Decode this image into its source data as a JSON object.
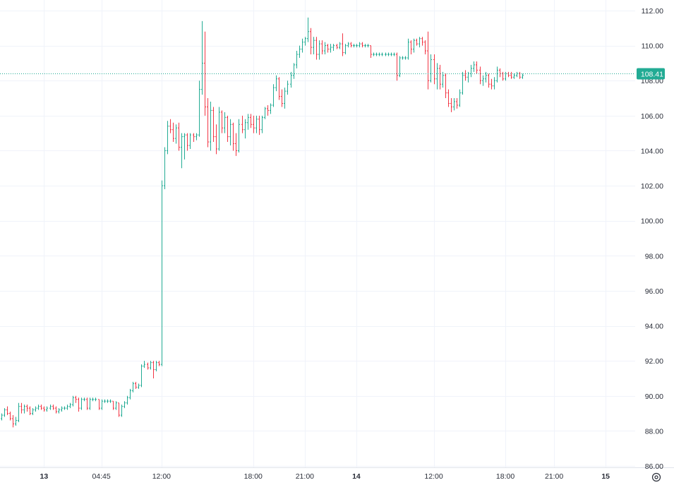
{
  "chart_data": {
    "type": "ohlc",
    "colors": {
      "up": "#22ab94",
      "down": "#f23645",
      "grid": "#f0f3fa",
      "axis_text": "#2a2e39",
      "price_line": "#22ab94",
      "background": "#ffffff"
    },
    "y_axis": {
      "position": "right",
      "ylim": [
        86,
        113
      ],
      "ticks": [
        "112.00",
        "110.00",
        "108.00",
        "106.00",
        "104.00",
        "102.00",
        "100.00",
        "98.00",
        "96.00",
        "94.00",
        "92.00",
        "90.00",
        "88.00",
        "86.00"
      ]
    },
    "x_axis": {
      "ticks": [
        {
          "label": "13",
          "bar": 15,
          "major": true
        },
        {
          "label": "04:45",
          "bar": 35,
          "major": false
        },
        {
          "label": "12:00",
          "bar": 56,
          "major": false
        },
        {
          "label": "18:00",
          "bar": 88,
          "major": false
        },
        {
          "label": "21:00",
          "bar": 106,
          "major": false
        },
        {
          "label": "14",
          "bar": 124,
          "major": true
        },
        {
          "label": "12:00",
          "bar": 151,
          "major": false
        },
        {
          "label": "18:00",
          "bar": 176,
          "major": false
        },
        {
          "label": "21:00",
          "bar": 193,
          "major": false
        },
        {
          "label": "15",
          "bar": 211,
          "major": true
        }
      ]
    },
    "last_price": {
      "value": 108.41,
      "label": "108.41"
    },
    "bars": [
      [
        88.7,
        89.0,
        88.6,
        88.9
      ],
      [
        88.9,
        89.3,
        88.8,
        89.2
      ],
      [
        89.2,
        89.4,
        88.9,
        89.0
      ],
      [
        89.0,
        89.1,
        88.6,
        88.7
      ],
      [
        88.7,
        88.9,
        88.2,
        88.4
      ],
      [
        88.4,
        88.8,
        88.3,
        88.6
      ],
      [
        88.6,
        89.6,
        88.5,
        89.4
      ],
      [
        89.4,
        89.6,
        89.0,
        89.2
      ],
      [
        89.2,
        89.5,
        89.0,
        89.4
      ],
      [
        89.4,
        89.5,
        89.1,
        89.3
      ],
      [
        89.3,
        89.4,
        88.9,
        89.0
      ],
      [
        89.0,
        89.3,
        88.9,
        89.2
      ],
      [
        89.2,
        89.4,
        89.1,
        89.3
      ],
      [
        89.3,
        89.5,
        89.2,
        89.4
      ],
      [
        89.4,
        89.5,
        89.2,
        89.3
      ],
      [
        89.3,
        89.4,
        89.1,
        89.2
      ],
      [
        89.2,
        89.4,
        89.1,
        89.3
      ],
      [
        89.3,
        89.5,
        89.2,
        89.4
      ],
      [
        89.4,
        89.5,
        89.2,
        89.3
      ],
      [
        89.3,
        89.4,
        89.0,
        89.1
      ],
      [
        89.1,
        89.3,
        89.0,
        89.2
      ],
      [
        89.2,
        89.4,
        89.1,
        89.3
      ],
      [
        89.3,
        89.4,
        89.2,
        89.3
      ],
      [
        89.3,
        89.5,
        89.2,
        89.4
      ],
      [
        89.4,
        89.6,
        89.3,
        89.5
      ],
      [
        89.5,
        90.0,
        89.4,
        89.9
      ],
      [
        89.9,
        90.0,
        89.6,
        89.8
      ],
      [
        89.8,
        89.9,
        89.1,
        89.3
      ],
      [
        89.3,
        89.9,
        89.2,
        89.8
      ],
      [
        89.8,
        89.9,
        89.7,
        89.8
      ],
      [
        89.8,
        89.9,
        89.2,
        89.3
      ],
      [
        89.3,
        89.9,
        89.2,
        89.8
      ],
      [
        89.8,
        89.9,
        89.7,
        89.8
      ],
      [
        89.8,
        89.9,
        89.7,
        89.8
      ],
      [
        89.8,
        89.8,
        89.2,
        89.3
      ],
      [
        89.3,
        89.8,
        89.2,
        89.7
      ],
      [
        89.7,
        89.8,
        89.6,
        89.7
      ],
      [
        89.7,
        89.8,
        89.6,
        89.7
      ],
      [
        89.7,
        89.8,
        89.6,
        89.7
      ],
      [
        89.7,
        89.7,
        89.2,
        89.3
      ],
      [
        89.3,
        89.7,
        89.2,
        89.6
      ],
      [
        89.6,
        89.6,
        88.8,
        88.9
      ],
      [
        88.9,
        89.5,
        88.8,
        89.4
      ],
      [
        89.4,
        89.7,
        89.3,
        89.6
      ],
      [
        89.6,
        90.0,
        89.5,
        89.9
      ],
      [
        89.9,
        90.4,
        89.8,
        90.3
      ],
      [
        90.3,
        90.8,
        90.2,
        90.7
      ],
      [
        90.7,
        90.8,
        90.4,
        90.5
      ],
      [
        90.5,
        90.7,
        90.4,
        90.6
      ],
      [
        90.6,
        91.8,
        90.5,
        91.7
      ],
      [
        91.7,
        92.0,
        91.6,
        91.8
      ],
      [
        91.8,
        91.9,
        91.5,
        91.6
      ],
      [
        91.6,
        92.0,
        91.5,
        91.9
      ],
      [
        91.9,
        92.0,
        91.0,
        91.5
      ],
      [
        91.5,
        92.0,
        91.4,
        91.9
      ],
      [
        91.9,
        92.0,
        91.7,
        91.8
      ],
      [
        91.8,
        102.3,
        91.7,
        102.0
      ],
      [
        102.0,
        104.2,
        101.8,
        104.0
      ],
      [
        104.0,
        105.7,
        103.8,
        105.4
      ],
      [
        105.4,
        105.8,
        105.0,
        105.2
      ],
      [
        105.2,
        105.6,
        104.5,
        104.7
      ],
      [
        104.7,
        105.5,
        104.4,
        105.3
      ],
      [
        105.3,
        105.6,
        104.0,
        104.2
      ],
      [
        104.2,
        105.0,
        103.0,
        104.8
      ],
      [
        104.8,
        105.0,
        103.5,
        104.9
      ],
      [
        104.9,
        105.0,
        104.0,
        104.3
      ],
      [
        104.3,
        105.0,
        104.1,
        104.9
      ],
      [
        104.9,
        105.0,
        104.5,
        104.8
      ],
      [
        104.8,
        105.0,
        104.6,
        104.9
      ],
      [
        104.9,
        108.0,
        104.8,
        107.5
      ],
      [
        107.5,
        111.4,
        107.2,
        109.0
      ],
      [
        109.0,
        110.8,
        106.0,
        106.5
      ],
      [
        106.5,
        107.0,
        104.2,
        104.5
      ],
      [
        104.5,
        106.8,
        104.0,
        106.3
      ],
      [
        106.3,
        106.5,
        104.5,
        104.8
      ],
      [
        104.8,
        105.5,
        103.8,
        104.1
      ],
      [
        104.1,
        106.5,
        104.0,
        106.2
      ],
      [
        106.2,
        106.3,
        105.0,
        105.3
      ],
      [
        105.3,
        106.2,
        105.0,
        105.9
      ],
      [
        105.9,
        106.0,
        104.5,
        104.8
      ],
      [
        104.8,
        105.8,
        104.3,
        105.5
      ],
      [
        105.5,
        105.6,
        104.0,
        104.4
      ],
      [
        104.4,
        105.0,
        103.7,
        104.0
      ],
      [
        104.0,
        105.8,
        103.9,
        105.5
      ],
      [
        105.5,
        106.0,
        105.0,
        105.2
      ],
      [
        105.2,
        105.8,
        104.7,
        105.6
      ],
      [
        105.6,
        106.1,
        105.2,
        105.9
      ],
      [
        105.9,
        106.1,
        105.3,
        105.5
      ],
      [
        105.5,
        106.0,
        105.0,
        105.3
      ],
      [
        105.3,
        106.0,
        105.0,
        105.8
      ],
      [
        105.8,
        106.0,
        104.9,
        105.2
      ],
      [
        105.2,
        106.0,
        105.0,
        105.9
      ],
      [
        105.9,
        106.5,
        105.8,
        106.4
      ],
      [
        106.4,
        106.6,
        106.0,
        106.3
      ],
      [
        106.3,
        106.7,
        106.1,
        106.6
      ],
      [
        106.6,
        107.8,
        106.5,
        107.6
      ],
      [
        107.6,
        108.3,
        107.4,
        108.1
      ],
      [
        108.1,
        108.2,
        106.9,
        107.1
      ],
      [
        107.1,
        107.5,
        106.5,
        106.7
      ],
      [
        106.7,
        107.6,
        106.4,
        107.4
      ],
      [
        107.4,
        108.0,
        107.2,
        107.8
      ],
      [
        107.8,
        108.5,
        107.6,
        108.3
      ],
      [
        108.3,
        109.0,
        108.1,
        108.9
      ],
      [
        108.9,
        109.7,
        108.7,
        109.5
      ],
      [
        109.5,
        110.0,
        109.3,
        109.8
      ],
      [
        109.8,
        110.4,
        109.6,
        110.2
      ],
      [
        110.2,
        110.5,
        110.0,
        110.4
      ],
      [
        110.4,
        111.6,
        110.2,
        110.8
      ],
      [
        110.8,
        111.0,
        109.5,
        109.9
      ],
      [
        109.9,
        110.5,
        109.5,
        110.3
      ],
      [
        110.3,
        110.5,
        109.2,
        109.5
      ],
      [
        109.5,
        110.3,
        109.2,
        110.1
      ],
      [
        110.1,
        110.3,
        109.5,
        109.7
      ],
      [
        109.7,
        110.2,
        109.5,
        110.0
      ],
      [
        110.0,
        110.1,
        109.6,
        109.8
      ],
      [
        109.8,
        110.1,
        109.6,
        109.9
      ],
      [
        109.9,
        110.1,
        109.7,
        110.0
      ],
      [
        110.0,
        110.1,
        109.8,
        109.9
      ],
      [
        109.9,
        110.2,
        109.8,
        110.1
      ],
      [
        110.1,
        110.7,
        109.4,
        109.6
      ],
      [
        109.6,
        110.1,
        109.5,
        110.0
      ],
      [
        110.0,
        110.2,
        109.9,
        110.1
      ],
      [
        110.1,
        110.2,
        109.9,
        110.0
      ],
      [
        110.0,
        110.1,
        109.9,
        110.0
      ],
      [
        110.0,
        110.1,
        109.9,
        110.0
      ],
      [
        110.0,
        110.2,
        109.9,
        110.1
      ],
      [
        110.1,
        110.2,
        109.9,
        110.0
      ],
      [
        110.0,
        110.1,
        109.9,
        110.0
      ],
      [
        110.0,
        110.1,
        109.9,
        110.0
      ],
      [
        110.0,
        110.0,
        109.3,
        109.5
      ],
      [
        109.5,
        109.6,
        109.4,
        109.5
      ],
      [
        109.5,
        109.6,
        109.4,
        109.5
      ],
      [
        109.5,
        109.6,
        109.4,
        109.5
      ],
      [
        109.5,
        109.6,
        109.4,
        109.5
      ],
      [
        109.5,
        109.6,
        109.4,
        109.5
      ],
      [
        109.5,
        109.6,
        109.4,
        109.5
      ],
      [
        109.5,
        109.6,
        109.4,
        109.5
      ],
      [
        109.5,
        109.6,
        109.4,
        109.5
      ],
      [
        109.5,
        109.6,
        108.0,
        108.3
      ],
      [
        108.3,
        109.4,
        108.2,
        109.3
      ],
      [
        109.3,
        109.4,
        109.2,
        109.3
      ],
      [
        109.3,
        109.4,
        109.2,
        109.3
      ],
      [
        109.3,
        110.4,
        109.2,
        110.2
      ],
      [
        110.2,
        110.3,
        109.5,
        109.8
      ],
      [
        109.8,
        110.4,
        109.6,
        110.3
      ],
      [
        110.3,
        110.4,
        110.0,
        110.1
      ],
      [
        110.1,
        110.5,
        109.9,
        110.4
      ],
      [
        110.4,
        110.5,
        110.0,
        110.2
      ],
      [
        110.2,
        110.3,
        109.5,
        109.7
      ],
      [
        109.7,
        110.8,
        107.5,
        108.0
      ],
      [
        108.0,
        109.5,
        107.9,
        109.2
      ],
      [
        109.2,
        109.5,
        107.8,
        108.1
      ],
      [
        108.1,
        109.0,
        107.5,
        108.7
      ],
      [
        108.7,
        108.9,
        107.5,
        107.8
      ],
      [
        107.8,
        108.5,
        107.6,
        108.3
      ],
      [
        108.3,
        108.4,
        107.0,
        107.3
      ],
      [
        107.3,
        107.5,
        106.5,
        106.7
      ],
      [
        106.7,
        107.0,
        106.2,
        106.5
      ],
      [
        106.5,
        107.0,
        106.3,
        106.8
      ],
      [
        106.8,
        107.0,
        106.4,
        106.6
      ],
      [
        106.6,
        107.5,
        106.5,
        107.3
      ],
      [
        107.3,
        108.5,
        107.2,
        108.3
      ],
      [
        108.3,
        108.6,
        108.0,
        108.2
      ],
      [
        108.2,
        108.5,
        107.9,
        108.4
      ],
      [
        108.4,
        108.9,
        108.2,
        108.7
      ],
      [
        108.7,
        109.1,
        108.5,
        108.9
      ],
      [
        108.9,
        109.1,
        108.4,
        108.6
      ],
      [
        108.6,
        108.8,
        107.8,
        108.0
      ],
      [
        108.0,
        108.3,
        107.7,
        108.1
      ],
      [
        108.1,
        108.5,
        107.9,
        108.3
      ],
      [
        108.3,
        108.4,
        107.6,
        107.8
      ],
      [
        107.8,
        108.1,
        107.5,
        107.7
      ],
      [
        107.7,
        108.2,
        107.5,
        108.0
      ],
      [
        108.0,
        108.8,
        107.9,
        108.6
      ],
      [
        108.6,
        108.7,
        108.2,
        108.4
      ],
      [
        108.4,
        108.5,
        108.0,
        108.1
      ],
      [
        108.1,
        108.5,
        108.0,
        108.4
      ],
      [
        108.4,
        108.5,
        108.2,
        108.3
      ],
      [
        108.3,
        108.5,
        108.1,
        108.2
      ],
      [
        108.2,
        108.4,
        108.1,
        108.3
      ],
      [
        108.3,
        108.5,
        108.2,
        108.4
      ],
      [
        108.4,
        108.5,
        108.1,
        108.2
      ],
      [
        108.2,
        108.4,
        108.1,
        108.3
      ]
    ]
  }
}
